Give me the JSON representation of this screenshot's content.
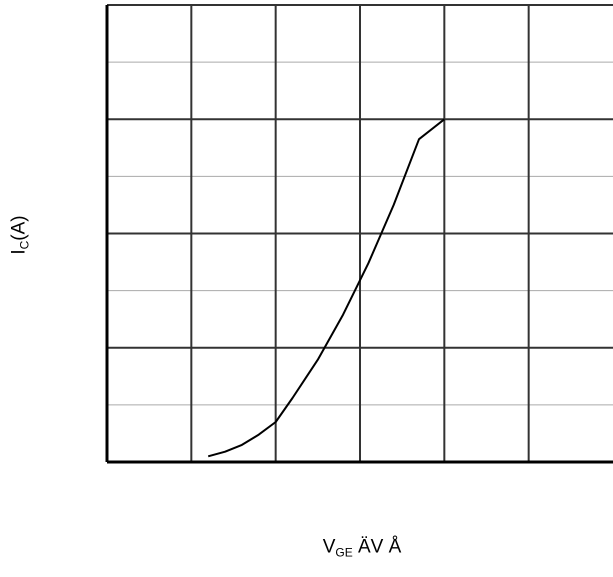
{
  "chart_data": {
    "type": "line",
    "title": "",
    "xlabel": {
      "main": "V",
      "sub": "GE",
      "rest": " ÄV Å"
    },
    "ylabel": {
      "main": "I",
      "sub": "C",
      "rest": "(A)"
    },
    "xlim": [
      0,
      6
    ],
    "ylim": [
      0,
      8
    ],
    "x_major_gridlines": 6,
    "y_major_gridlines": 4,
    "y_minor_gridlines": 4,
    "grid": true,
    "tick_labels_shown": false,
    "colors": {
      "axis": "#000000",
      "grid_major": "#333333",
      "grid_minor": "#aaaaaa",
      "curve": "#000000"
    },
    "series": [
      {
        "x": [
          1.2,
          1.4,
          1.6,
          1.8,
          2.0,
          2.2,
          2.5,
          2.8,
          3.1,
          3.4,
          3.7,
          4.0
        ],
        "y": [
          0.1,
          0.18,
          0.3,
          0.48,
          0.7,
          1.12,
          1.79,
          2.58,
          3.48,
          4.5,
          5.65,
          6.0
        ]
      }
    ]
  }
}
